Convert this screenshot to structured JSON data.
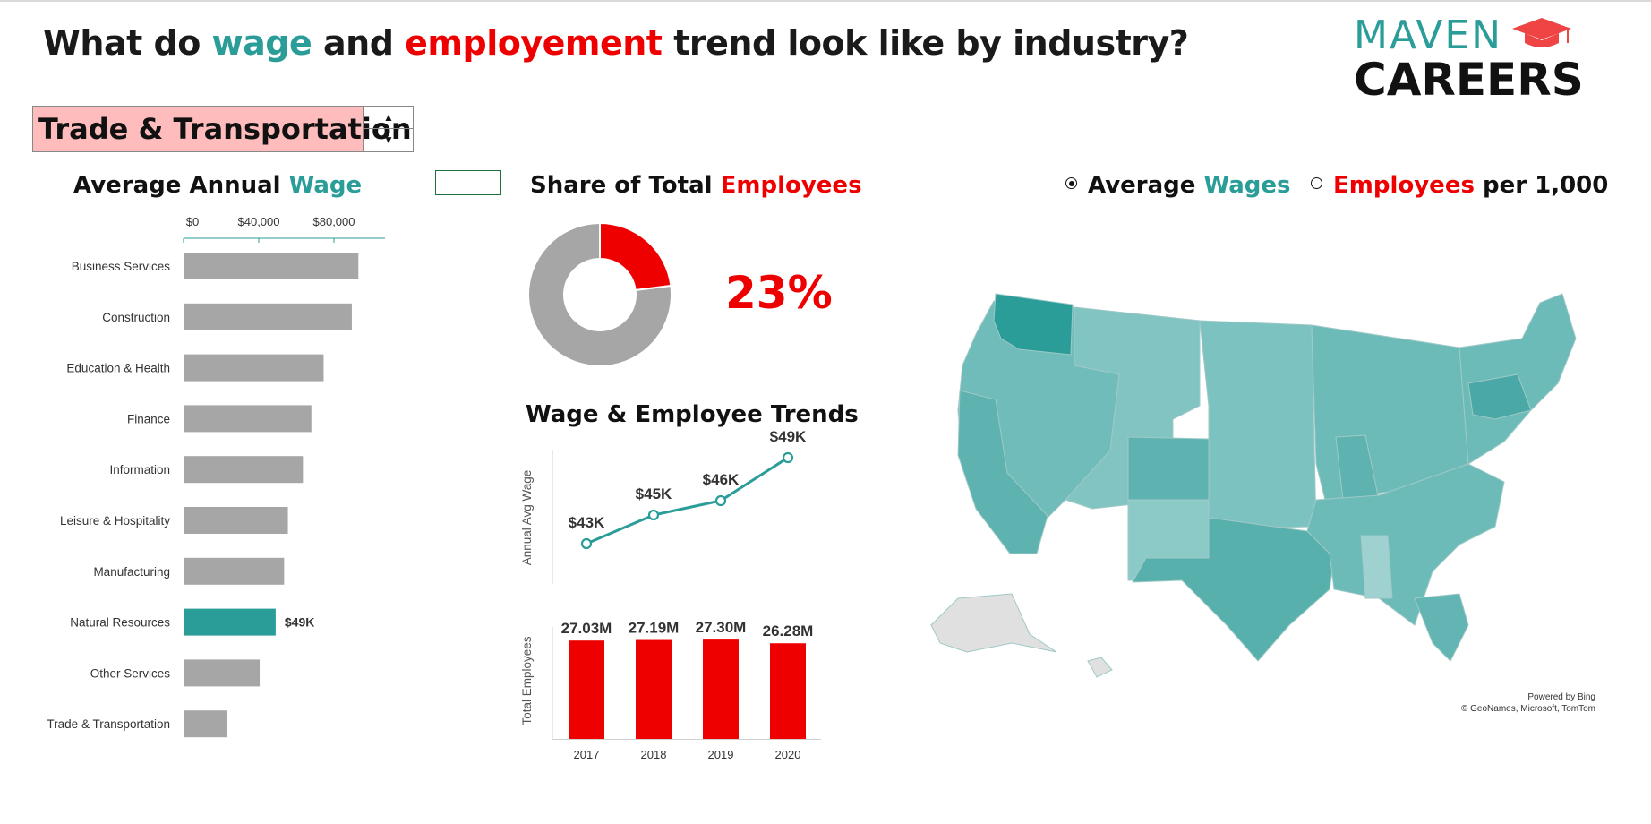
{
  "header": {
    "title_parts": [
      "What do ",
      "wage",
      " and ",
      "employement",
      " trend look like by industry?"
    ]
  },
  "logo": {
    "line1": "MAVEN",
    "line2": "CAREERS",
    "icon": "graduation-cap-icon"
  },
  "selector": {
    "value": "Trade & Transportation",
    "up_icon": "triangle-up-icon",
    "down_icon": "triangle-down-icon"
  },
  "colors": {
    "teal": "#2a9d99",
    "red": "#ee0000",
    "gray": "#a6a6a6",
    "highlight": "#ffbcbc"
  },
  "sections": {
    "wage_title": [
      "Average Annual ",
      "Wage"
    ],
    "share_title": [
      "Share of Total ",
      "Employees"
    ],
    "trends_title": "Wage & Employee Trends"
  },
  "toggles": {
    "wages": {
      "parts": [
        "Average ",
        "Wages"
      ],
      "selected": true
    },
    "employees": {
      "parts": [
        "Employees",
        " per 1,000"
      ],
      "selected": false
    }
  },
  "share_pct": "23%",
  "chart_data": [
    {
      "type": "bar",
      "orientation": "horizontal",
      "categories": [
        "Business Services",
        "Construction",
        "Education & Health",
        "Finance",
        "Information",
        "Leisure & Hospitality",
        "Manufacturing",
        "Natural Resources",
        "Other Services",
        "Trade & Transportation"
      ],
      "values": [
        93000,
        89500,
        74500,
        68000,
        63500,
        55500,
        53500,
        49000,
        40500,
        23000
      ],
      "highlight_index": 7,
      "highlight_label": "$49K",
      "xticks": [
        "$0",
        "$40,000",
        "$80,000"
      ],
      "xtick_values": [
        0,
        40000,
        80000
      ],
      "xlim": [
        0,
        100000
      ],
      "xaxis_position": "top"
    },
    {
      "type": "pie",
      "style": "donut",
      "slices": [
        {
          "value": 23
        },
        {
          "value": 77
        }
      ],
      "colors": [
        "#ee0000",
        "#a6a6a6"
      ]
    },
    {
      "type": "line",
      "x": [
        "2017",
        "2018",
        "2019",
        "2020"
      ],
      "values": [
        43000,
        45000,
        46000,
        49000
      ],
      "data_labels": [
        "$43K",
        "$45K",
        "$46K",
        "$49K"
      ],
      "ylabel": "Annual Avg Wage",
      "ylim": [
        40000,
        50000
      ]
    },
    {
      "type": "bar",
      "categories": [
        "2017",
        "2018",
        "2019",
        "2020"
      ],
      "values": [
        27.03,
        27.19,
        27.3,
        26.28
      ],
      "data_labels": [
        "27.03M",
        "27.19M",
        "27.30M",
        "26.28M"
      ],
      "ylabel": "Total Employees",
      "ylim": [
        0,
        32
      ]
    }
  ],
  "map": {
    "type": "choropleth",
    "region": "United States",
    "attribution": [
      "Powered by Bing",
      "© GeoNames, Microsoft, TomTom"
    ]
  }
}
